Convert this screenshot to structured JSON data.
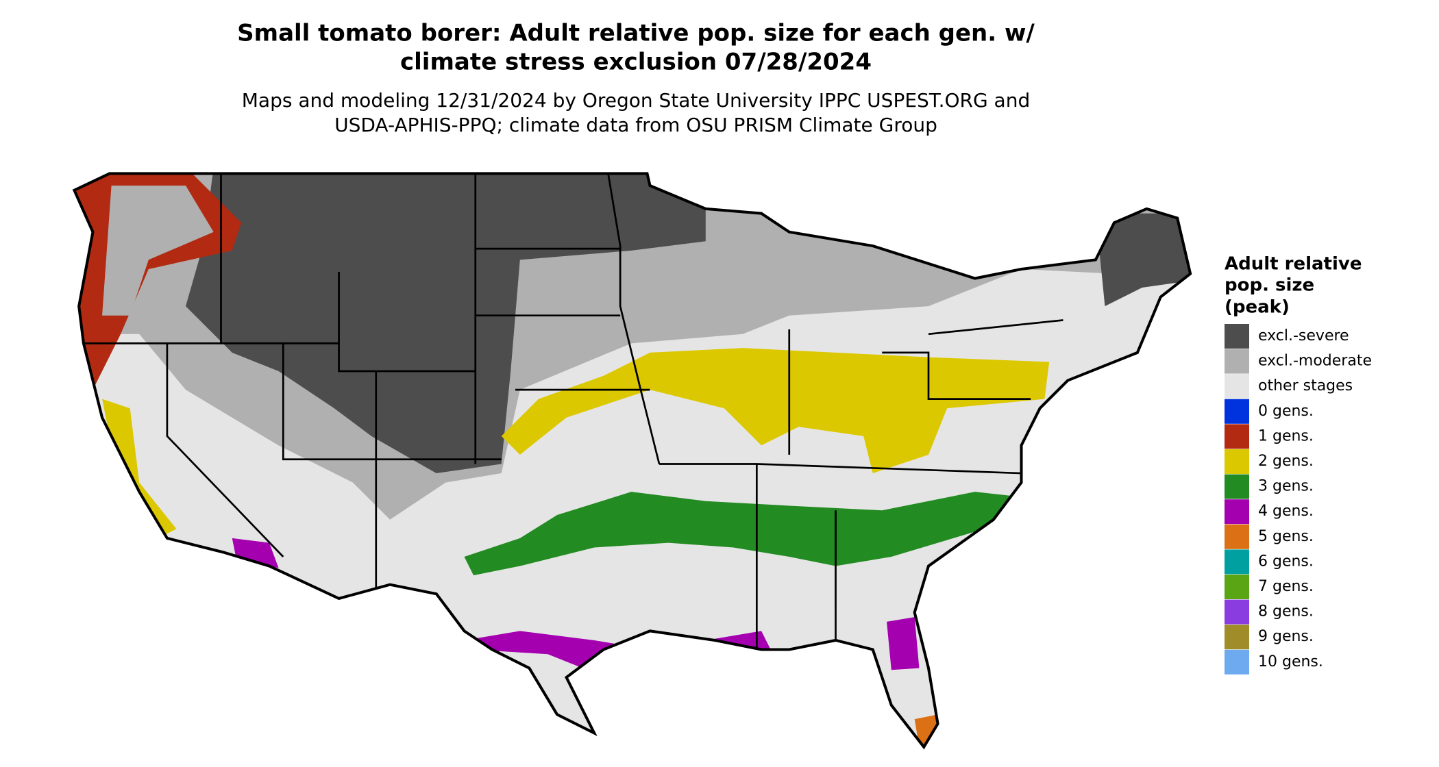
{
  "header": {
    "title": [
      "Small tomato borer: Adult relative pop. size for each gen. w/",
      "climate stress exclusion 07/28/2024"
    ],
    "subtitle": [
      "Maps and modeling 12/31/2024 by Oregon State University IPPC USPEST.ORG and",
      "USDA-APHIS-PPQ; climate data from OSU PRISM Climate Group"
    ]
  },
  "legend": {
    "title": [
      "Adult relative",
      "pop. size",
      "(peak)"
    ],
    "items": [
      {
        "label": "excl.-severe",
        "color": "#4d4d4d"
      },
      {
        "label": "excl.-moderate",
        "color": "#b0b0b0"
      },
      {
        "label": "other stages",
        "color": "#e5e5e5"
      },
      {
        "label": "0 gens.",
        "color": "#0033dd"
      },
      {
        "label": "1 gens.",
        "color": "#b22a12"
      },
      {
        "label": "2 gens.",
        "color": "#dcc800"
      },
      {
        "label": "3 gens.",
        "color": "#228b22"
      },
      {
        "label": "4 gens.",
        "color": "#a400b0"
      },
      {
        "label": "5 gens.",
        "color": "#dc7014"
      },
      {
        "label": "6 gens.",
        "color": "#00a0a0"
      },
      {
        "label": "7 gens.",
        "color": "#5aa514"
      },
      {
        "label": "8 gens.",
        "color": "#8a3ce0"
      },
      {
        "label": "9 gens.",
        "color": "#a08c28"
      },
      {
        "label": "10 gens.",
        "color": "#6eaaf0"
      }
    ]
  }
}
